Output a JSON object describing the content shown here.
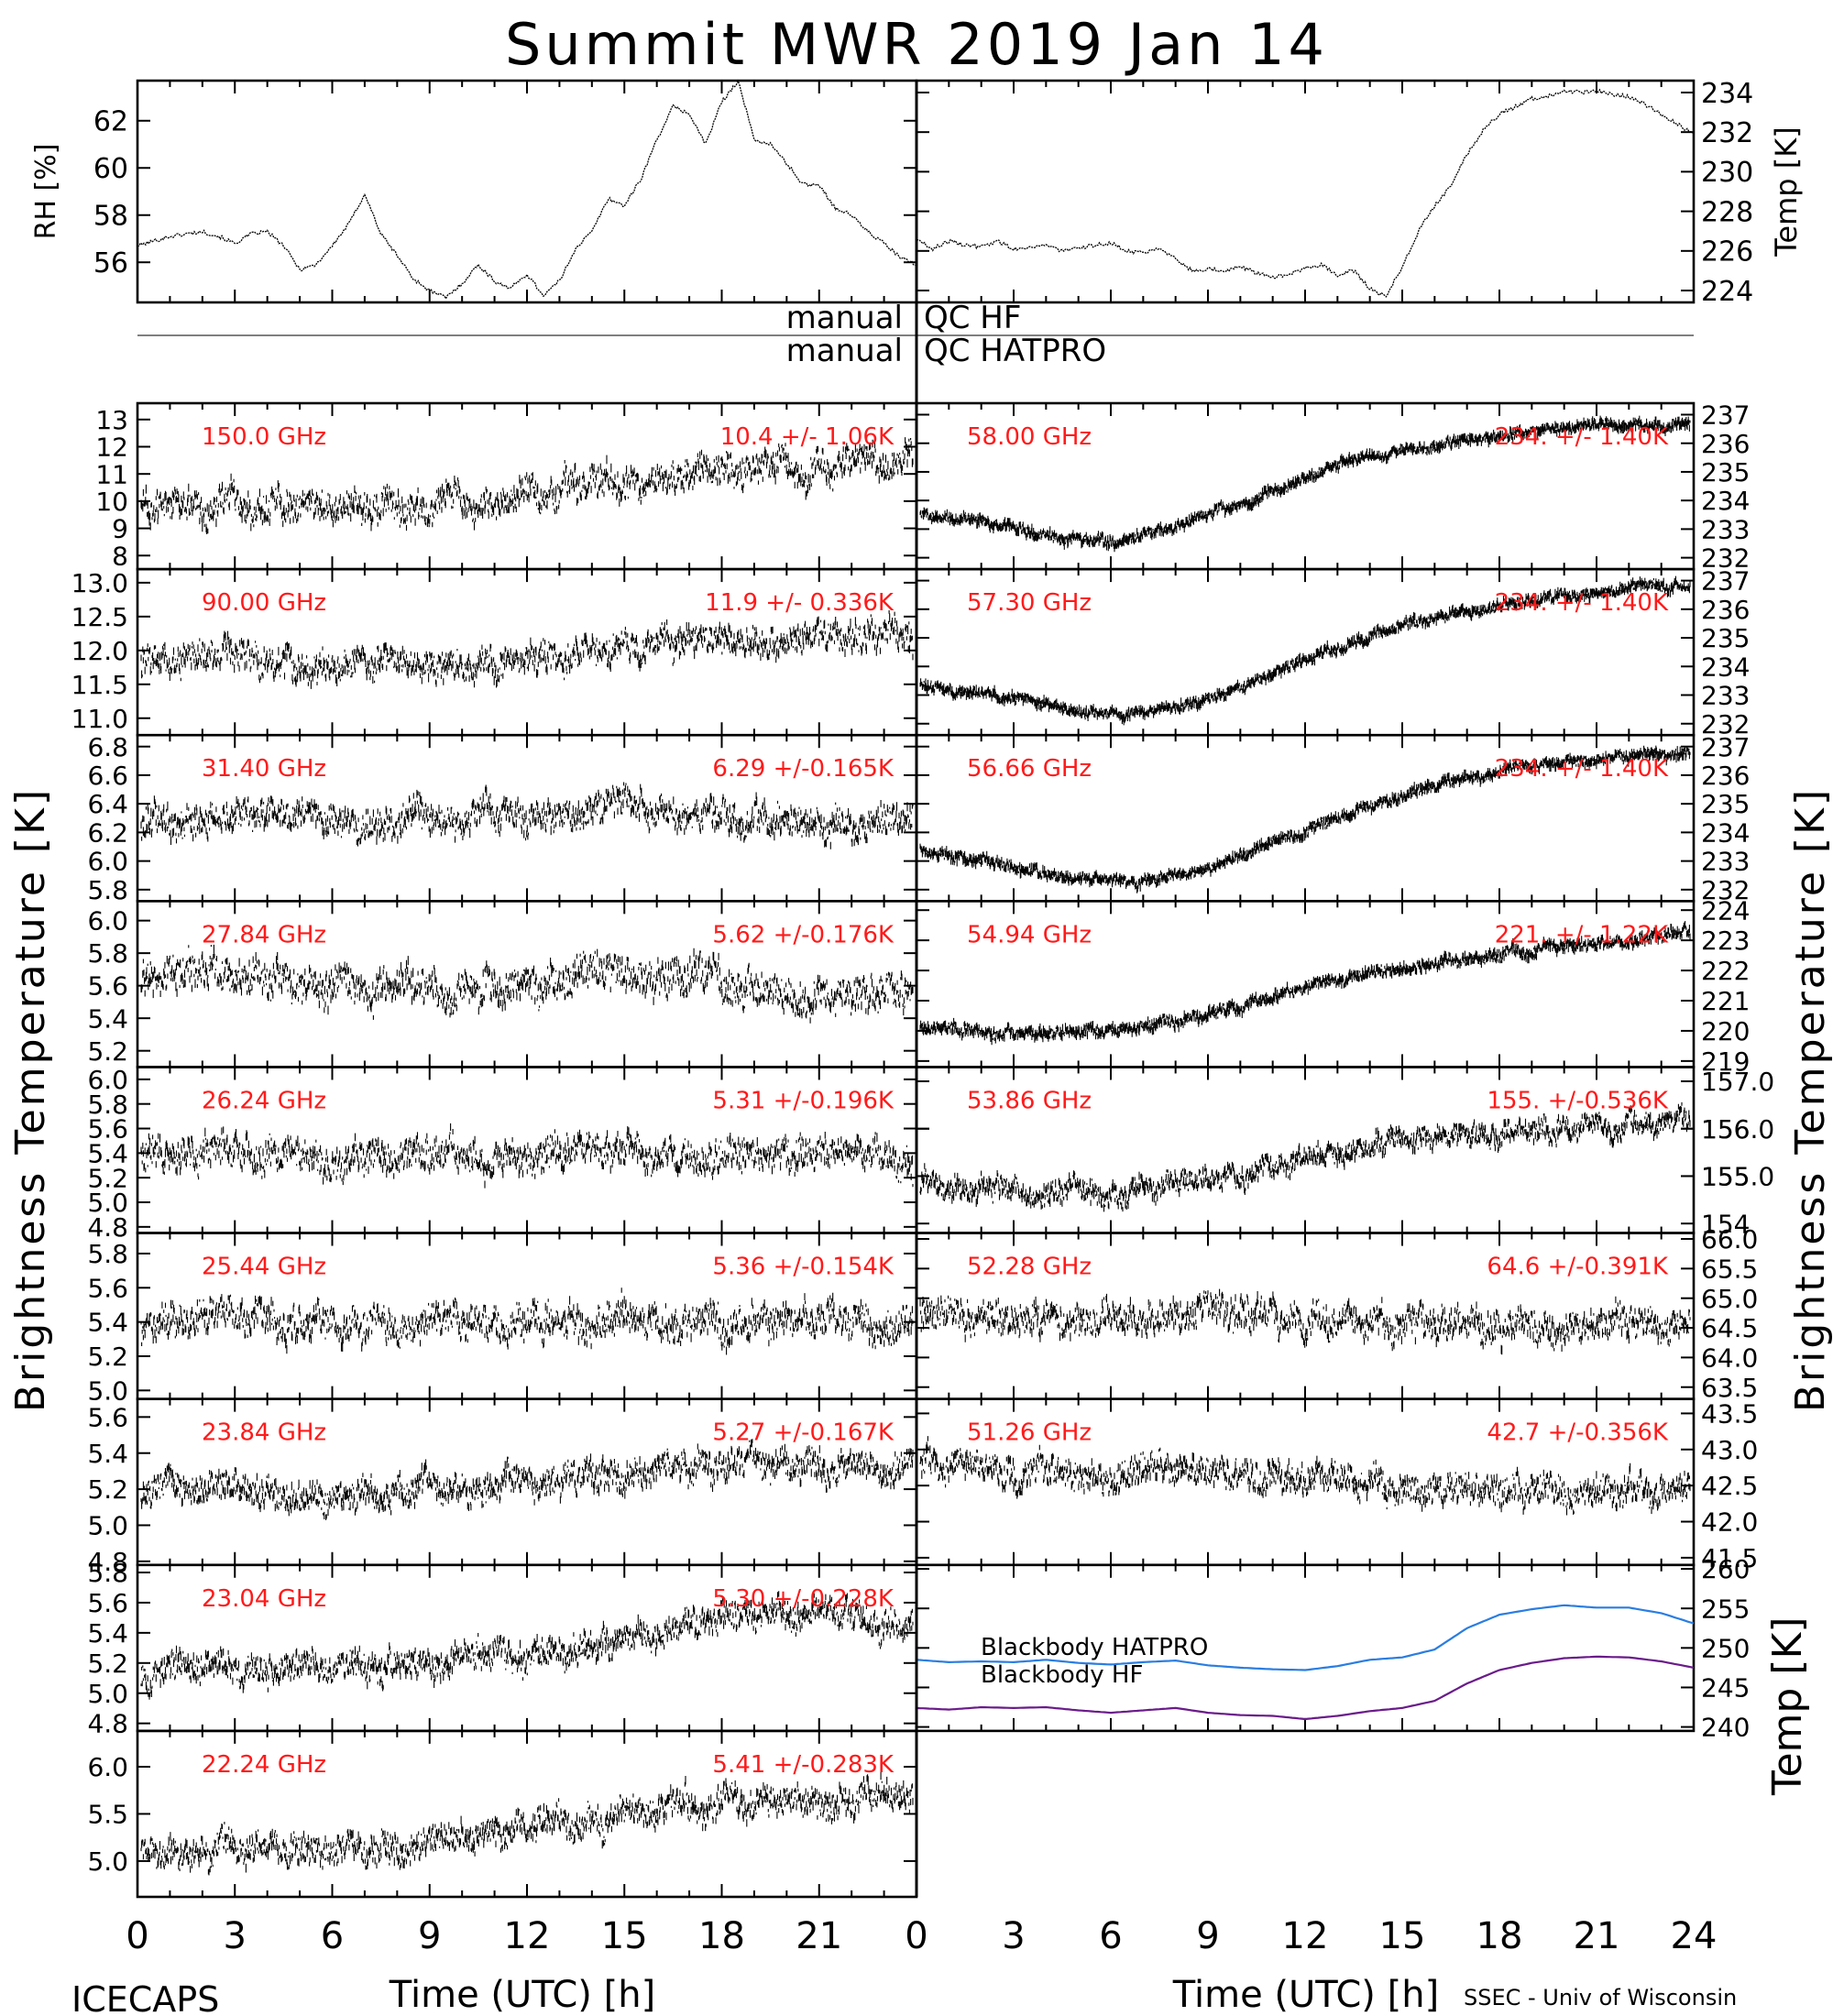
{
  "title": "Summit MWR 2019 Jan 14",
  "footer_left": "ICECAPS",
  "footer_right": "SSEC - Univ of Wisconsin",
  "x_axis_label": "Time (UTC) [h]",
  "left_brightness_label": "Brightness Temperature [K]",
  "right_brightness_label": "Brightness Temperature [K]",
  "qc_labels": {
    "hf_left": "manual",
    "hf_right": "QC HF",
    "hatpro_left": "manual",
    "hatpro_right": "QC HATPRO"
  },
  "colors": {
    "data": "#000000",
    "annotation": "#ff1a1a",
    "hatpro": "#2a7de1",
    "hf": "#6a1b8a"
  },
  "chart_data": {
    "top_panels": [
      {
        "type": "line",
        "ylabel": "RH [%]",
        "yticks": [
          "56",
          "58",
          "60",
          "62"
        ],
        "ylim": [
          54.3,
          63.7
        ],
        "x": [
          0,
          0.5,
          1,
          1.5,
          2,
          2.5,
          3,
          3.5,
          4,
          4.5,
          5,
          5.5,
          6,
          6.5,
          7,
          7.5,
          8,
          8.5,
          9,
          9.5,
          10,
          10.5,
          11,
          11.5,
          12,
          12.5,
          13,
          13.5,
          14,
          14.5,
          15,
          15.5,
          16,
          16.5,
          17,
          17.5,
          18,
          18.5,
          19,
          19.5,
          20,
          20.5,
          21,
          21.5,
          22,
          22.5,
          23,
          23.5,
          24
        ],
        "values": [
          56.7,
          56.9,
          57.1,
          57.2,
          57.3,
          57.1,
          56.8,
          57.2,
          57.3,
          56.7,
          55.7,
          55.9,
          56.7,
          57.6,
          58.9,
          57.2,
          56.3,
          55.3,
          54.8,
          54.5,
          55.1,
          55.9,
          55.2,
          54.9,
          55.5,
          54.6,
          55.2,
          56.6,
          57.3,
          58.7,
          58.4,
          59.5,
          61.2,
          62.6,
          62.3,
          61.0,
          62.8,
          63.7,
          61.2,
          61.0,
          60.2,
          59.3,
          59.3,
          58.3,
          58.0,
          57.3,
          56.8,
          56.2,
          55.9
        ]
      },
      {
        "type": "line",
        "ylabel": "Temp [K]",
        "yticks": [
          "224",
          "226",
          "228",
          "230",
          "232",
          "234"
        ],
        "ylim": [
          223.4,
          234.6
        ],
        "x": [
          0,
          0.5,
          1,
          1.5,
          2,
          2.5,
          3,
          3.5,
          4,
          4.5,
          5,
          5.5,
          6,
          6.5,
          7,
          7.5,
          8,
          8.5,
          9,
          9.5,
          10,
          10.5,
          11,
          11.5,
          12,
          12.5,
          13,
          13.5,
          14,
          14.5,
          15,
          15.5,
          16,
          16.5,
          17,
          17.5,
          18,
          18.5,
          19,
          19.5,
          20,
          20.5,
          21,
          21.5,
          22,
          22.5,
          23,
          23.5,
          24
        ],
        "values": [
          226.6,
          226.1,
          226.5,
          226.3,
          226.2,
          226.5,
          226.1,
          226.2,
          226.3,
          226.0,
          226.1,
          226.3,
          226.4,
          226.0,
          225.9,
          226.2,
          225.6,
          225.0,
          225.1,
          225.0,
          225.2,
          224.9,
          224.7,
          224.8,
          225.1,
          225.3,
          224.8,
          225.0,
          224.1,
          223.7,
          225.2,
          227.0,
          228.3,
          229.3,
          230.9,
          232.1,
          232.9,
          233.3,
          233.7,
          233.8,
          234.1,
          234.0,
          234.1,
          233.9,
          233.8,
          233.4,
          232.9,
          232.4,
          231.9
        ]
      }
    ],
    "channel_panels": [
      {
        "freq": "150.0 GHz",
        "stat": "10.4 +/- 1.06K",
        "yticks": [
          "8",
          "9",
          "10",
          "11",
          "12",
          "13"
        ],
        "ylim": [
          7.5,
          13.6
        ],
        "shape": [
          0.4,
          0.38,
          0.4,
          0.39,
          0.38,
          0.38,
          0.39,
          0.4,
          0.43,
          0.5,
          0.55,
          0.58,
          0.6,
          0.62,
          0.61,
          0.63,
          0.62
        ],
        "noise": 0.13,
        "seed": 3
      },
      {
        "freq": "58.00 GHz",
        "stat": "234. +/- 1.40K",
        "yticks": [
          "232",
          "233",
          "234",
          "235",
          "236",
          "237"
        ],
        "ylim": [
          231.6,
          237.4
        ],
        "shape": [
          0.33,
          0.3,
          0.25,
          0.18,
          0.16,
          0.22,
          0.32,
          0.43,
          0.55,
          0.66,
          0.72,
          0.76,
          0.8,
          0.84,
          0.86,
          0.87,
          0.88
        ],
        "noise": 0.04,
        "seed": 5
      },
      {
        "freq": "90.00 GHz",
        "stat": "11.9 +/- 0.336K",
        "yticks": [
          "11.0",
          "11.5",
          "12.0",
          "12.5",
          "13.0"
        ],
        "ylim": [
          10.75,
          13.2
        ],
        "shape": [
          0.42,
          0.45,
          0.48,
          0.45,
          0.42,
          0.44,
          0.43,
          0.42,
          0.46,
          0.5,
          0.53,
          0.56,
          0.55,
          0.57,
          0.56,
          0.58,
          0.56
        ],
        "noise": 0.12,
        "seed": 7
      },
      {
        "freq": "57.30 GHz",
        "stat": "234. +/- 1.40K",
        "yticks": [
          "232",
          "233",
          "234",
          "235",
          "236",
          "237"
        ],
        "ylim": [
          231.6,
          237.4
        ],
        "shape": [
          0.32,
          0.26,
          0.22,
          0.16,
          0.12,
          0.15,
          0.22,
          0.32,
          0.45,
          0.55,
          0.65,
          0.72,
          0.78,
          0.83,
          0.86,
          0.88,
          0.9
        ],
        "noise": 0.04,
        "seed": 11
      },
      {
        "freq": "31.40 GHz",
        "stat": "6.29 +/-0.165K",
        "yticks": [
          "5.8",
          "6.0",
          "6.2",
          "6.4",
          "6.6",
          "6.8"
        ],
        "ylim": [
          5.72,
          6.88
        ],
        "shape": [
          0.48,
          0.5,
          0.52,
          0.5,
          0.48,
          0.46,
          0.48,
          0.5,
          0.5,
          0.55,
          0.58,
          0.56,
          0.52,
          0.48,
          0.45,
          0.47,
          0.5
        ],
        "noise": 0.13,
        "seed": 13
      },
      {
        "freq": "56.66 GHz",
        "stat": "234. +/- 1.40K",
        "yticks": [
          "232",
          "233",
          "234",
          "235",
          "236",
          "237"
        ],
        "ylim": [
          231.6,
          237.4
        ],
        "shape": [
          0.32,
          0.26,
          0.2,
          0.14,
          0.12,
          0.13,
          0.2,
          0.3,
          0.42,
          0.55,
          0.64,
          0.72,
          0.78,
          0.82,
          0.86,
          0.88,
          0.9
        ],
        "noise": 0.04,
        "seed": 17
      },
      {
        "freq": "27.84 GHz",
        "stat": "5.62 +/-0.176K",
        "yticks": [
          "5.2",
          "5.4",
          "5.6",
          "5.8",
          "6.0"
        ],
        "ylim": [
          5.1,
          6.12
        ],
        "shape": [
          0.58,
          0.6,
          0.55,
          0.52,
          0.48,
          0.46,
          0.5,
          0.48,
          0.46,
          0.52,
          0.58,
          0.56,
          0.52,
          0.48,
          0.45,
          0.44,
          0.47
        ],
        "noise": 0.15,
        "seed": 19
      },
      {
        "freq": "54.94 GHz",
        "stat": "221. +/- 1.22K",
        "yticks": [
          "219",
          "220",
          "221",
          "222",
          "223",
          "224"
        ],
        "ylim": [
          218.8,
          224.3
        ],
        "shape": [
          0.25,
          0.22,
          0.2,
          0.2,
          0.22,
          0.26,
          0.32,
          0.4,
          0.48,
          0.55,
          0.6,
          0.64,
          0.68,
          0.71,
          0.74,
          0.78,
          0.82
        ],
        "noise": 0.045,
        "seed": 23
      },
      {
        "freq": "26.24 GHz",
        "stat": "5.31 +/-0.196K",
        "yticks": [
          "4.8",
          "5.0",
          "5.2",
          "5.4",
          "5.6",
          "5.8",
          "6.0"
        ],
        "ylim": [
          4.75,
          6.1
        ],
        "shape": [
          0.45,
          0.48,
          0.5,
          0.47,
          0.44,
          0.46,
          0.48,
          0.46,
          0.45,
          0.48,
          0.5,
          0.48,
          0.46,
          0.47,
          0.48,
          0.46,
          0.44
        ],
        "noise": 0.13,
        "seed": 29
      },
      {
        "freq": "53.86 GHz",
        "stat": "155. +/-0.536K",
        "yticks": [
          "154",
          "155.0",
          "155",
          "156.0",
          "156",
          "157.0"
        ],
        "ylim": [
          153.8,
          157.3
        ],
        "shape": [
          0.3,
          0.28,
          0.26,
          0.25,
          0.26,
          0.28,
          0.32,
          0.38,
          0.45,
          0.5,
          0.55,
          0.58,
          0.6,
          0.62,
          0.64,
          0.66,
          0.68
        ],
        "noise": 0.09,
        "seed": 31
      },
      {
        "freq": "25.44 GHz",
        "stat": "5.36 +/-0.154K",
        "yticks": [
          "5.0",
          "5.2",
          "5.4",
          "5.6",
          "5.8"
        ],
        "ylim": [
          4.95,
          5.92
        ],
        "shape": [
          0.45,
          0.48,
          0.5,
          0.46,
          0.43,
          0.44,
          0.46,
          0.45,
          0.44,
          0.47,
          0.5,
          0.48,
          0.46,
          0.47,
          0.48,
          0.47,
          0.45
        ],
        "noise": 0.14,
        "seed": 37
      },
      {
        "freq": "52.28 GHz",
        "stat": "64.6 +/-0.391K",
        "yticks": [
          "63.5",
          "64.0",
          "64.5",
          "65.0",
          "65.5",
          "66.0"
        ],
        "ylim": [
          63.3,
          66.1
        ],
        "shape": [
          0.52,
          0.5,
          0.48,
          0.47,
          0.47,
          0.48,
          0.5,
          0.5,
          0.48,
          0.47,
          0.46,
          0.46,
          0.45,
          0.45,
          0.46,
          0.46,
          0.45
        ],
        "noise": 0.13,
        "seed": 41
      },
      {
        "freq": "23.84 GHz",
        "stat": "5.27 +/-0.167K",
        "yticks": [
          "4.8",
          "5.0",
          "5.2",
          "5.4",
          "5.6"
        ],
        "ylim": [
          4.78,
          5.7
        ],
        "shape": [
          0.45,
          0.48,
          0.46,
          0.43,
          0.4,
          0.42,
          0.46,
          0.48,
          0.5,
          0.52,
          0.54,
          0.57,
          0.6,
          0.62,
          0.6,
          0.58,
          0.56
        ],
        "noise": 0.12,
        "seed": 43
      },
      {
        "freq": "51.26 GHz",
        "stat": "42.7 +/-0.356K",
        "yticks": [
          "41.5",
          "42.0",
          "42.5",
          "43.0",
          "43.5"
        ],
        "ylim": [
          41.4,
          43.7
        ],
        "shape": [
          0.62,
          0.6,
          0.57,
          0.55,
          0.55,
          0.56,
          0.57,
          0.55,
          0.52,
          0.5,
          0.48,
          0.46,
          0.44,
          0.44,
          0.43,
          0.43,
          0.44
        ],
        "noise": 0.12,
        "seed": 47
      },
      {
        "freq": "23.04 GHz",
        "stat": "5.30 +/-0.228K",
        "yticks": [
          "4.8",
          "5.0",
          "5.2",
          "5.4",
          "5.6",
          "5.8"
        ],
        "ylim": [
          4.75,
          5.85
        ],
        "shape": [
          0.35,
          0.38,
          0.4,
          0.38,
          0.37,
          0.38,
          0.4,
          0.44,
          0.48,
          0.52,
          0.58,
          0.64,
          0.68,
          0.7,
          0.7,
          0.68,
          0.66
        ],
        "noise": 0.12,
        "seed": 53
      },
      {
        "type": "line",
        "ylabel": "Temp [K]",
        "yticks": [
          "240",
          "245",
          "250",
          "255",
          "260"
        ],
        "ylim": [
          239.5,
          260.5
        ],
        "legend": [
          "Blackbody HATPRO",
          "Blackbody HF"
        ],
        "x": [
          0,
          1,
          2,
          3,
          4,
          5,
          6,
          7,
          8,
          9,
          10,
          11,
          12,
          13,
          14,
          15,
          16,
          17,
          18,
          19,
          20,
          21,
          22,
          23,
          24
        ],
        "series": [
          {
            "name": "Blackbody HATPRO",
            "values": [
              248.5,
              248.2,
              248.3,
              248.2,
              248.5,
              248.1,
              247.9,
              248.2,
              248.4,
              247.8,
              247.5,
              247.3,
              247.2,
              247.7,
              248.5,
              248.8,
              249.8,
              252.5,
              254.2,
              254.9,
              255.4,
              255.1,
              255.1,
              254.4,
              253.1
            ]
          },
          {
            "name": "Blackbody HF",
            "values": [
              242.4,
              242.2,
              242.5,
              242.4,
              242.5,
              242.1,
              241.8,
              242.1,
              242.4,
              241.8,
              241.5,
              241.4,
              241.0,
              241.4,
              242.0,
              242.4,
              243.3,
              245.5,
              247.2,
              248.1,
              248.7,
              248.9,
              248.8,
              248.3,
              247.5
            ]
          }
        ]
      },
      {
        "freq": "22.24 GHz",
        "stat": "5.41 +/-0.283K",
        "yticks": [
          "5.0",
          "5.5",
          "6.0"
        ],
        "ylim": [
          4.62,
          6.38
        ],
        "shape": [
          0.28,
          0.3,
          0.32,
          0.3,
          0.28,
          0.31,
          0.34,
          0.38,
          0.42,
          0.45,
          0.5,
          0.55,
          0.58,
          0.6,
          0.6,
          0.62,
          0.6
        ],
        "noise": 0.12,
        "seed": 59
      }
    ],
    "x_ticks_left": [
      "0",
      "3",
      "6",
      "9",
      "12",
      "15",
      "18",
      "21"
    ],
    "x_ticks_right": [
      "0",
      "3",
      "6",
      "9",
      "12",
      "15",
      "18",
      "21",
      "24"
    ],
    "xlim": [
      0,
      24
    ]
  }
}
